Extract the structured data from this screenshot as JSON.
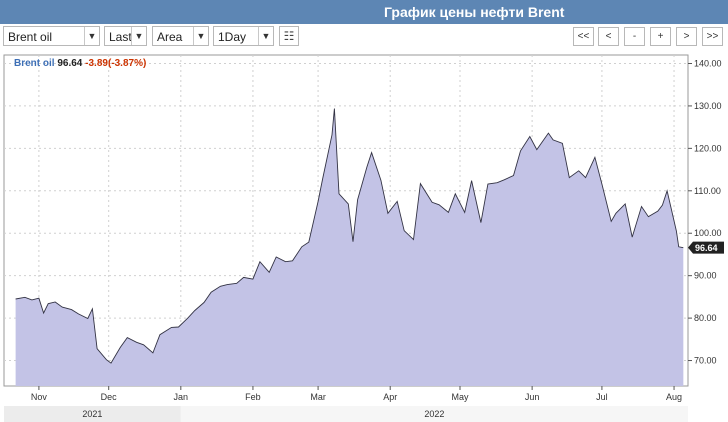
{
  "title": "График цены нефти Brent",
  "toolbar": {
    "instrument": "Brent oil",
    "price_type": "Last",
    "chart_type": "Area",
    "interval": "1Day",
    "nav": [
      "<<",
      "<",
      "-",
      "+",
      ">",
      ">>"
    ]
  },
  "legend": {
    "name": "Brent oil",
    "value": "96.64",
    "change": "-3.89(-3.87%)",
    "name_color": "#3d6fb6",
    "change_color": "#cc3300"
  },
  "chart_data": {
    "type": "area",
    "title": "График цены нефти Brent",
    "series": [
      {
        "name": "Brent oil",
        "x": [
          "2021-10-22",
          "2021-10-26",
          "2021-10-29",
          "2021-11-01",
          "2021-11-03",
          "2021-11-05",
          "2021-11-08",
          "2021-11-11",
          "2021-11-15",
          "2021-11-18",
          "2021-11-22",
          "2021-11-24",
          "2021-11-26",
          "2021-11-30",
          "2021-12-02",
          "2021-12-06",
          "2021-12-09",
          "2021-12-13",
          "2021-12-16",
          "2021-12-20",
          "2021-12-23",
          "2021-12-28",
          "2021-12-31",
          "2022-01-04",
          "2022-01-07",
          "2022-01-11",
          "2022-01-14",
          "2022-01-18",
          "2022-01-21",
          "2022-01-25",
          "2022-01-28",
          "2022-02-01",
          "2022-02-04",
          "2022-02-08",
          "2022-02-11",
          "2022-02-15",
          "2022-02-18",
          "2022-02-22",
          "2022-02-25",
          "2022-03-01",
          "2022-03-03",
          "2022-03-07",
          "2022-03-08",
          "2022-03-10",
          "2022-03-14",
          "2022-03-16",
          "2022-03-18",
          "2022-03-22",
          "2022-03-24",
          "2022-03-28",
          "2022-03-31",
          "2022-04-04",
          "2022-04-07",
          "2022-04-11",
          "2022-04-14",
          "2022-04-19",
          "2022-04-22",
          "2022-04-26",
          "2022-04-29",
          "2022-05-03",
          "2022-05-06",
          "2022-05-10",
          "2022-05-13",
          "2022-05-17",
          "2022-05-20",
          "2022-05-24",
          "2022-05-27",
          "2022-05-31",
          "2022-06-03",
          "2022-06-08",
          "2022-06-10",
          "2022-06-14",
          "2022-06-17",
          "2022-06-21",
          "2022-06-24",
          "2022-06-28",
          "2022-07-01",
          "2022-07-05",
          "2022-07-07",
          "2022-07-11",
          "2022-07-14",
          "2022-07-18",
          "2022-07-21",
          "2022-07-25",
          "2022-07-27",
          "2022-07-29",
          "2022-08-02",
          "2022-08-03",
          "2022-08-05"
        ],
        "values": [
          84.5,
          84.9,
          84.3,
          84.7,
          81.2,
          83.4,
          83.8,
          82.6,
          82.0,
          81.0,
          79.9,
          82.2,
          72.8,
          70.2,
          69.4,
          73.1,
          75.4,
          74.3,
          73.7,
          71.8,
          76.1,
          77.8,
          77.9,
          80.0,
          81.8,
          83.7,
          86.1,
          87.5,
          87.9,
          88.2,
          89.6,
          89.2,
          93.3,
          90.8,
          94.4,
          93.3,
          93.5,
          96.8,
          97.9,
          107.5,
          112.9,
          123.2,
          129.4,
          109.3,
          106.9,
          98.0,
          107.9,
          115.6,
          119.0,
          112.5,
          104.7,
          107.5,
          100.6,
          98.5,
          111.7,
          107.3,
          106.7,
          104.9,
          109.3,
          104.9,
          112.4,
          102.5,
          111.6,
          111.9,
          112.6,
          113.6,
          119.4,
          122.8,
          119.7,
          123.6,
          122.0,
          121.2,
          113.1,
          114.7,
          113.1,
          117.9,
          111.6,
          102.8,
          104.7,
          106.9,
          99.1,
          106.3,
          103.9,
          105.2,
          106.6,
          110.0,
          100.5,
          96.8,
          96.6
        ]
      }
    ],
    "ylim": [
      64,
      142
    ],
    "xlim": [
      "2021-10-17",
      "2022-08-07"
    ],
    "y_ticks": [
      "70.00",
      "80.00",
      "90.00",
      "100.00",
      "110.00",
      "120.00",
      "130.00",
      "140.00"
    ],
    "x_ticks": [
      {
        "label": "Nov",
        "date": "2021-11-01"
      },
      {
        "label": "Dec",
        "date": "2021-12-01"
      },
      {
        "label": "Jan",
        "date": "2022-01-01"
      },
      {
        "label": "Feb",
        "date": "2022-02-01"
      },
      {
        "label": "Mar",
        "date": "2022-03-01"
      },
      {
        "label": "Apr",
        "date": "2022-04-01"
      },
      {
        "label": "May",
        "date": "2022-05-01"
      },
      {
        "label": "Jun",
        "date": "2022-06-01"
      },
      {
        "label": "Jul",
        "date": "2022-07-01"
      },
      {
        "label": "Aug",
        "date": "2022-08-01"
      }
    ],
    "years": [
      {
        "label": "2021",
        "start": "2021-10-17",
        "end": "2022-01-01"
      },
      {
        "label": "2022",
        "start": "2022-01-01",
        "end": "2022-08-07"
      }
    ],
    "last_value_label": "96.64",
    "grid": true,
    "colors": {
      "fill": "#c3c3e6",
      "line": "#333344",
      "grid": "#d0d0d0",
      "year_band": "#ececec"
    }
  }
}
